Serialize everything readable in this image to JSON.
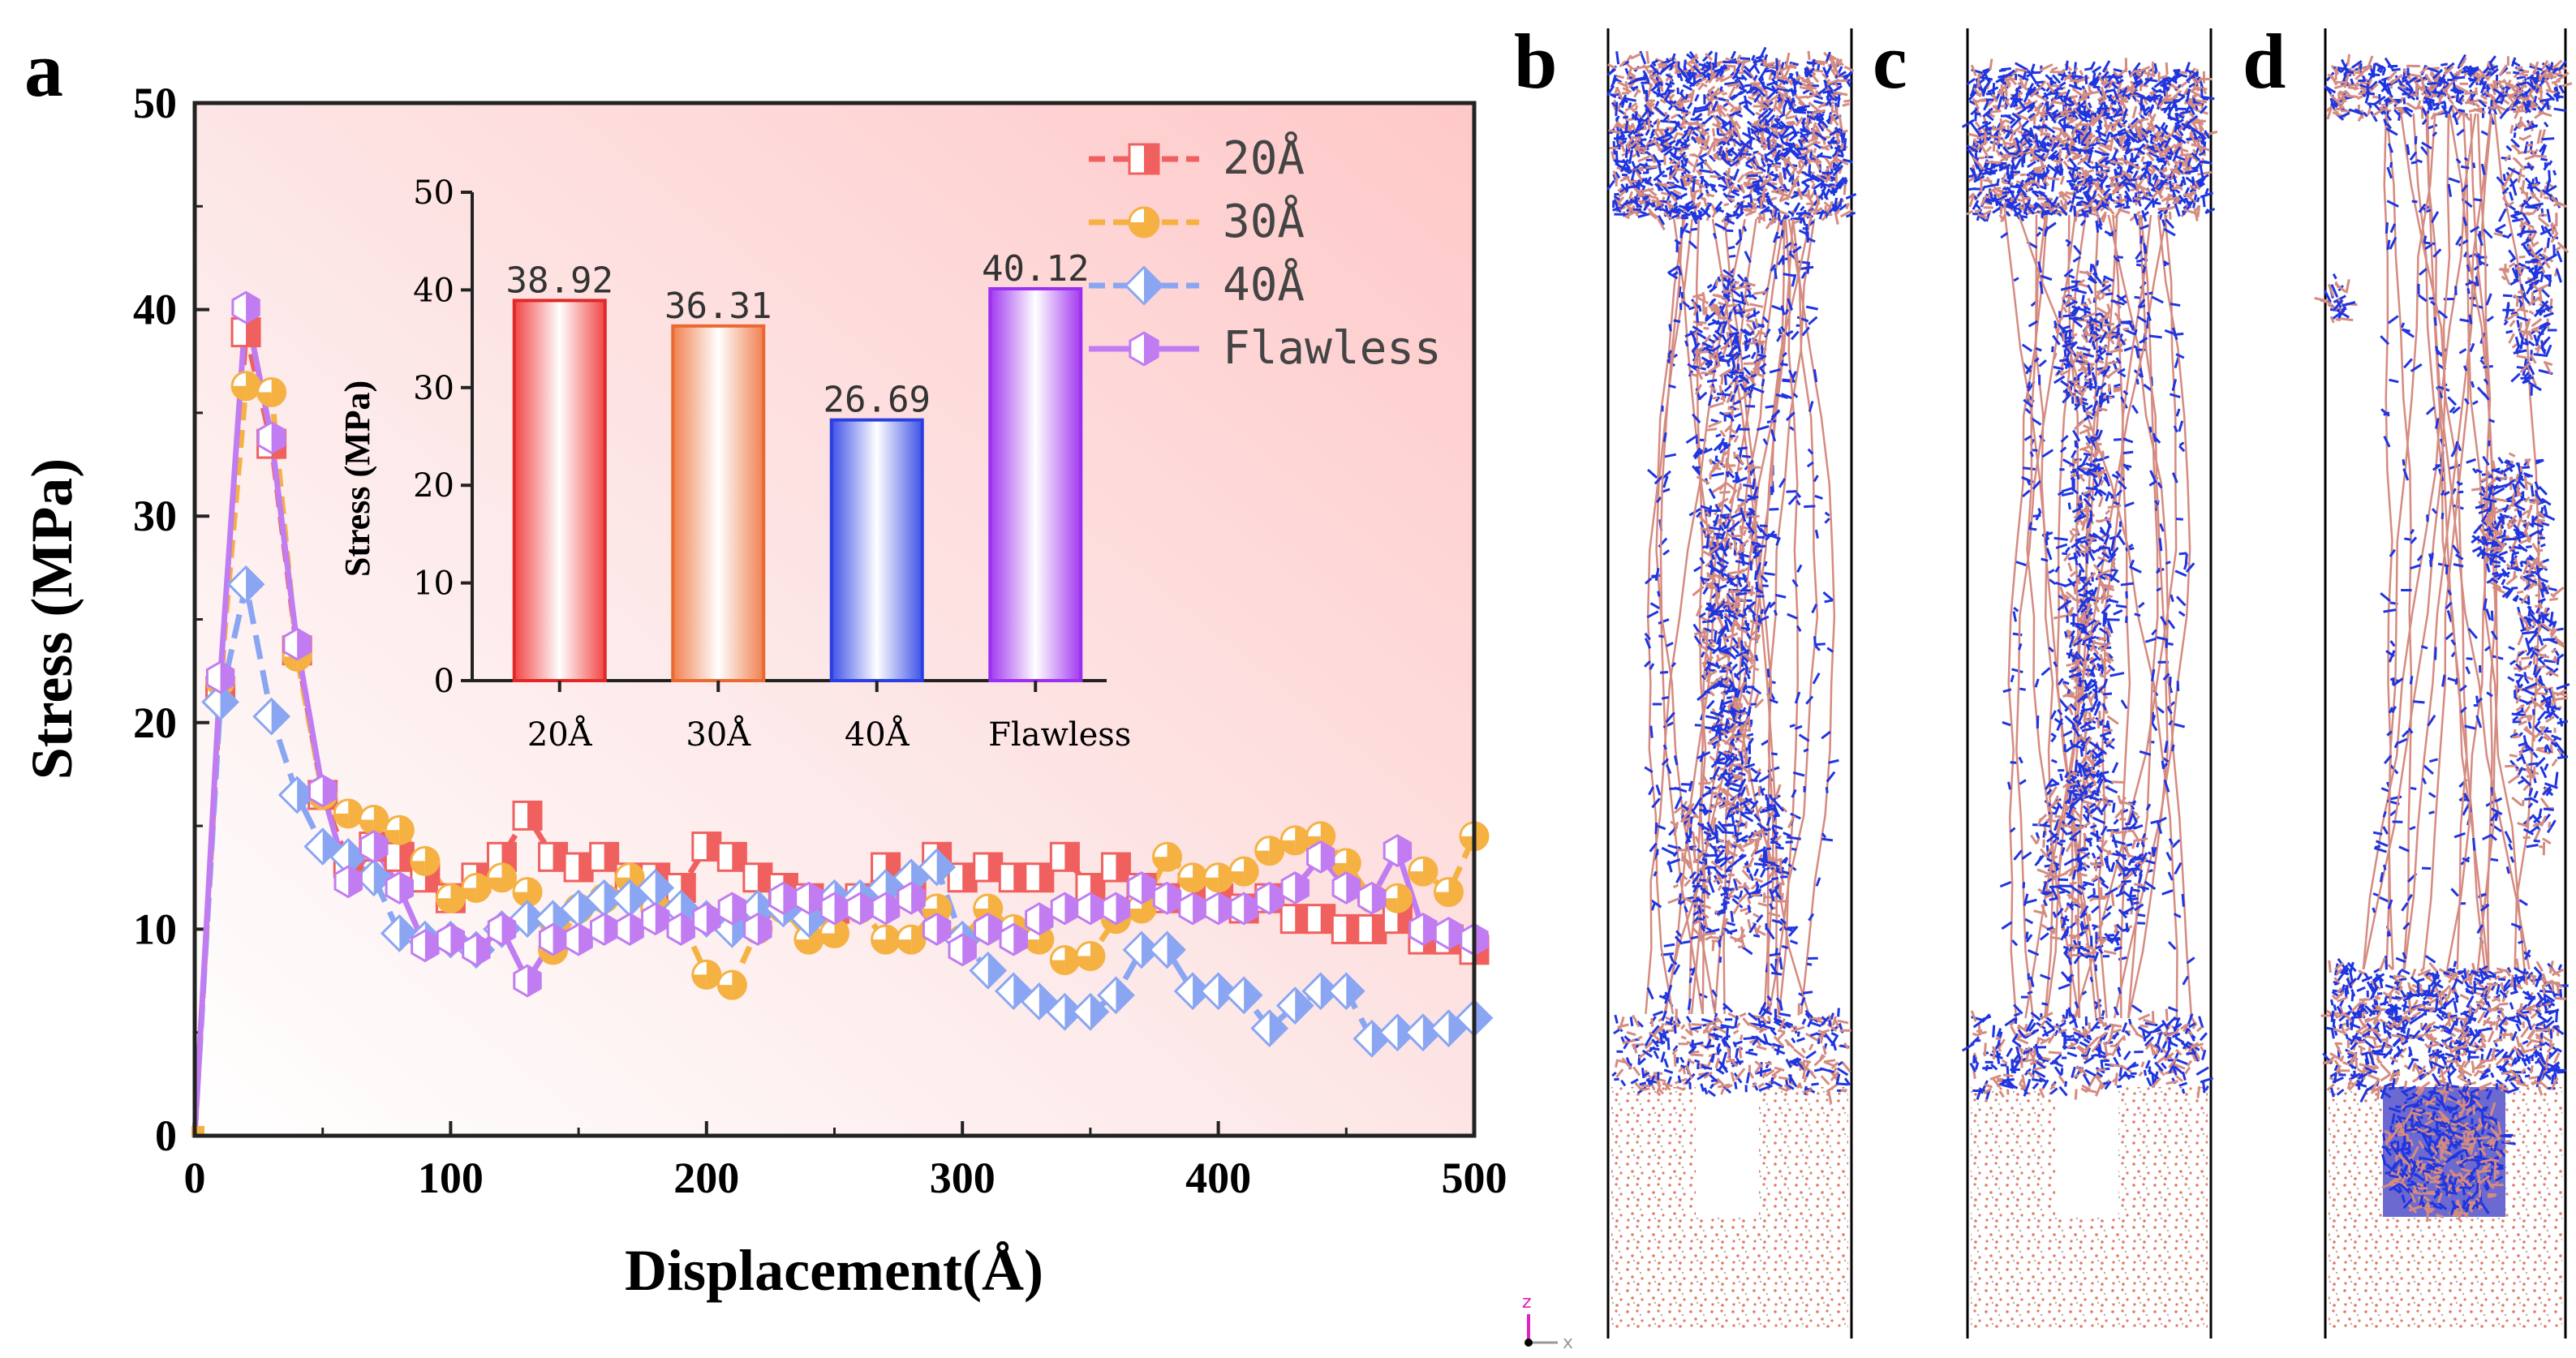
{
  "panel_labels": {
    "a": "a",
    "b": "b",
    "c": "c",
    "d": "d"
  },
  "axis_triad": {
    "z": "z",
    "x": "x"
  },
  "colors": {
    "s20": "#f0605e",
    "s30": "#f5b142",
    "s40": "#8aa6f2",
    "flawless": "#c17cf2",
    "atoms_blue": "#1f35e0",
    "atoms_red": "#d58b80"
  },
  "chart_data": [
    {
      "type": "line",
      "title": "",
      "xlabel": "Displacement(Å)",
      "ylabel": "Stress (MPa)",
      "xlim": [
        0,
        500
      ],
      "ylim": [
        0,
        50
      ],
      "xticks": [
        0,
        100,
        200,
        300,
        400,
        500
      ],
      "yticks": [
        0,
        10,
        20,
        30,
        40,
        50
      ],
      "legend_position": "top-right",
      "series": [
        {
          "name": "20Å",
          "marker": "square-half",
          "x": [
            0,
            10,
            20,
            30,
            40,
            50,
            60,
            70,
            80,
            90,
            100,
            110,
            120,
            130,
            140,
            150,
            160,
            170,
            180,
            190,
            200,
            210,
            220,
            230,
            240,
            250,
            260,
            270,
            280,
            290,
            300,
            310,
            320,
            330,
            340,
            350,
            360,
            370,
            380,
            390,
            400,
            410,
            420,
            430,
            440,
            450,
            460,
            470,
            480,
            490,
            500
          ],
          "y": [
            0,
            21.5,
            38.9,
            33.5,
            23.5,
            16.5,
            13.2,
            14,
            13.5,
            12.5,
            11.5,
            12.5,
            13.5,
            15.5,
            13.5,
            13,
            13.5,
            12.5,
            12.5,
            12,
            14,
            13.5,
            12.5,
            12,
            11.5,
            11,
            11.5,
            13,
            12,
            13.5,
            12.5,
            13,
            12.5,
            12.5,
            13.5,
            12,
            13,
            12,
            11.5,
            12,
            11.5,
            11,
            11.5,
            10.5,
            10.5,
            10,
            10,
            10.5,
            9.5,
            9.5,
            9
          ]
        },
        {
          "name": "30Å",
          "marker": "circle-half",
          "x": [
            0,
            10,
            20,
            30,
            40,
            50,
            60,
            70,
            80,
            90,
            100,
            110,
            120,
            130,
            140,
            150,
            160,
            170,
            180,
            190,
            200,
            210,
            220,
            230,
            240,
            250,
            260,
            270,
            280,
            290,
            300,
            310,
            320,
            330,
            340,
            350,
            360,
            370,
            380,
            390,
            400,
            410,
            420,
            430,
            440,
            450,
            460,
            470,
            480,
            490,
            500
          ],
          "y": [
            0,
            22,
            36.3,
            36,
            23.2,
            16.5,
            15.6,
            15.3,
            14.8,
            13.3,
            11.5,
            12,
            12.5,
            11.8,
            9,
            11,
            11.5,
            12.5,
            11,
            10.5,
            7.8,
            7.3,
            10,
            11,
            9.5,
            9.8,
            11,
            9.5,
            9.5,
            11,
            9.5,
            11,
            10,
            9.5,
            8.5,
            8.7,
            10.5,
            11,
            13.5,
            12.5,
            12.5,
            12.8,
            13.8,
            14.3,
            14.5,
            13.2,
            11.5,
            11.5,
            12.8,
            11.8,
            14.5
          ]
        },
        {
          "name": "40Å",
          "marker": "diamond-half",
          "x": [
            0,
            10,
            20,
            30,
            40,
            50,
            60,
            70,
            80,
            90,
            100,
            110,
            120,
            130,
            140,
            150,
            160,
            170,
            180,
            190,
            200,
            210,
            220,
            230,
            240,
            250,
            260,
            270,
            280,
            290,
            300,
            310,
            320,
            330,
            340,
            350,
            360,
            370,
            380,
            390,
            400,
            410,
            420,
            430,
            440,
            450,
            460,
            470,
            480,
            490,
            500
          ],
          "y": [
            0,
            21,
            26.7,
            20.3,
            16.5,
            14,
            13.5,
            12.5,
            9.8,
            9.5,
            9.5,
            9,
            10,
            10.5,
            10.5,
            11,
            11.5,
            11.5,
            12,
            11,
            10.5,
            10,
            11,
            11,
            10.5,
            11.5,
            11.5,
            12,
            12.5,
            13,
            9.5,
            8,
            7,
            6.5,
            6,
            6,
            6.8,
            9,
            9,
            7,
            7,
            6.8,
            5.2,
            6.3,
            7,
            7,
            4.7,
            5,
            5,
            5.2,
            5.7
          ]
        },
        {
          "name": "Flawless",
          "marker": "hexagon-half",
          "x": [
            0,
            10,
            20,
            30,
            40,
            50,
            60,
            70,
            80,
            90,
            100,
            110,
            120,
            130,
            140,
            150,
            160,
            170,
            180,
            190,
            200,
            210,
            220,
            230,
            240,
            250,
            260,
            270,
            280,
            290,
            300,
            310,
            320,
            330,
            340,
            350,
            360,
            370,
            380,
            390,
            400,
            410,
            420,
            430,
            440,
            450,
            460,
            470,
            480,
            490,
            500
          ],
          "y": [
            0,
            22.2,
            40.1,
            33.8,
            23.8,
            16.7,
            12.3,
            14,
            12,
            9.2,
            9.5,
            9,
            10,
            7.5,
            9.5,
            9.5,
            10,
            10,
            10.5,
            10,
            10.5,
            11,
            10,
            11.5,
            11.5,
            11,
            11,
            11,
            11.5,
            10,
            9,
            10,
            9.5,
            10.5,
            11,
            11,
            11,
            12,
            11.5,
            11,
            11,
            11,
            11.5,
            12,
            13.5,
            12,
            11.5,
            13.8,
            10,
            9.8,
            9.5
          ]
        }
      ]
    },
    {
      "type": "bar",
      "title": "",
      "xlabel": "",
      "ylabel": "Stress (MPa)",
      "ylim": [
        0,
        50
      ],
      "yticks": [
        0,
        10,
        20,
        30,
        40,
        50
      ],
      "categories": [
        "20Å",
        "30Å",
        "40Å",
        "Flawless"
      ],
      "values": [
        38.92,
        36.31,
        26.69,
        40.12
      ],
      "value_labels": [
        "38.92",
        "36.31",
        "26.69",
        "40.12"
      ]
    }
  ]
}
